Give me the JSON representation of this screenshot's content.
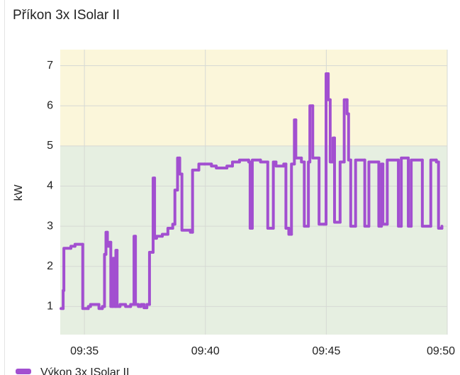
{
  "chart_data": {
    "type": "step",
    "title": "Příkon 3x ISolar II",
    "y_label": "kW",
    "x": [
      34.03,
      34.12,
      34.15,
      34.44,
      34.61,
      34.93,
      35.16,
      35.25,
      35.6,
      35.74,
      35.83,
      35.89,
      35.95,
      36.03,
      36.09,
      36.18,
      36.24,
      36.3,
      36.35,
      36.47,
      36.7,
      36.91,
      37.05,
      37.11,
      37.23,
      37.34,
      37.46,
      37.58,
      37.69,
      37.84,
      37.9,
      37.98,
      38.22,
      38.45,
      38.65,
      38.74,
      38.85,
      38.94,
      39.03,
      39.38,
      39.47,
      39.73,
      39.96,
      40.25,
      40.45,
      40.89,
      41.12,
      41.41,
      41.79,
      41.85,
      41.94,
      42.28,
      42.58,
      42.81,
      42.92,
      43.24,
      43.33,
      43.45,
      43.56,
      43.68,
      43.74,
      43.97,
      44.09,
      44.26,
      44.32,
      44.44,
      44.64,
      44.7,
      44.9,
      44.99,
      45.08,
      45.16,
      45.28,
      45.34,
      45.57,
      45.74,
      45.86,
      45.92,
      46.01,
      46.21,
      46.59,
      46.76,
      47.17,
      47.28,
      47.34,
      47.52,
      47.98,
      48.1,
      48.39,
      48.51,
      48.97,
      49.32,
      49.55,
      49.64,
      49.78
    ],
    "series": [
      {
        "name": "Výkon 3x ISolar II",
        "color": "#a24fd0",
        "values": [
          0.95,
          1.4,
          2.45,
          2.5,
          2.55,
          0.95,
          1.0,
          1.05,
          0.95,
          1.0,
          2.3,
          2.85,
          2.5,
          2.6,
          1.0,
          2.2,
          1.0,
          2.4,
          1.0,
          1.05,
          1.0,
          1.05,
          2.75,
          1.05,
          1.0,
          1.05,
          0.97,
          1.05,
          2.35,
          4.2,
          2.7,
          2.75,
          2.8,
          2.95,
          3.05,
          3.9,
          4.7,
          4.3,
          2.9,
          2.85,
          4.4,
          4.55,
          4.55,
          4.5,
          4.45,
          4.5,
          4.6,
          4.65,
          4.6,
          2.95,
          4.65,
          4.6,
          2.95,
          4.6,
          4.5,
          4.55,
          2.95,
          2.8,
          4.55,
          5.65,
          4.7,
          4.6,
          3.0,
          4.6,
          6.0,
          4.7,
          4.7,
          3.05,
          3.05,
          6.8,
          6.15,
          4.6,
          5.2,
          3.1,
          4.6,
          6.15,
          5.8,
          4.65,
          3.0,
          4.65,
          3.0,
          4.6,
          3.0,
          4.55,
          3.05,
          4.65,
          3.0,
          4.7,
          3.0,
          4.65,
          3.0,
          4.65,
          4.6,
          2.95,
          3.0
        ]
      }
    ],
    "xlim": [
      34,
      50
    ],
    "xticks": [
      {
        "value": 35,
        "label": "09:35"
      },
      {
        "value": 40,
        "label": "09:40"
      },
      {
        "value": 45,
        "label": "09:45"
      },
      {
        "value": 50,
        "label": "09:50"
      }
    ],
    "ylim": [
      0.3,
      7.4
    ],
    "yticks": [
      1,
      2,
      3,
      4,
      5,
      6,
      7
    ],
    "grid": true,
    "bands": [
      {
        "from": 0.3,
        "to": 5,
        "color": "#e6efe1"
      },
      {
        "from": 5,
        "to": 7.4,
        "color": "#fbf6da"
      }
    ]
  }
}
